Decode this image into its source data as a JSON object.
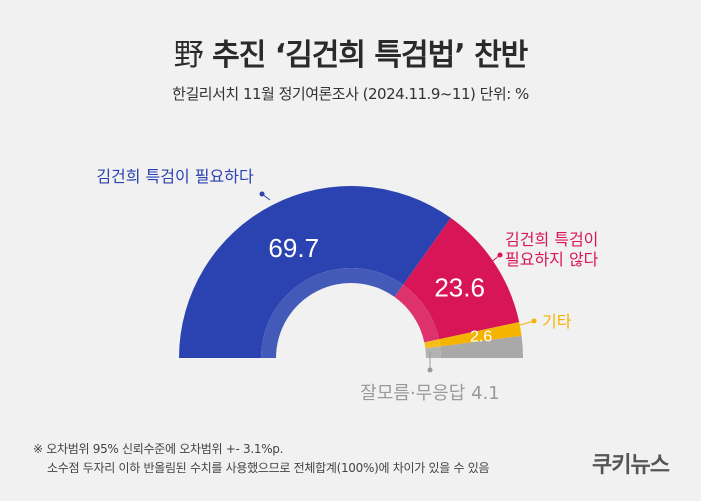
{
  "header": {
    "title_hanja": "野",
    "title_rest": " 추진 ‘김건희 특검법’ 찬반",
    "subtitle": "한길리서치 11월 정기여론조사 (2024.11.9~11) 단위: %"
  },
  "chart_data": {
    "type": "pie",
    "variant": "semi-donut",
    "slices": [
      {
        "label": "김건희 특검이 필요하다",
        "value": 69.7,
        "value_label": "69.7",
        "color": "#2a43b0",
        "label_color": "#2a43b0"
      },
      {
        "label": "김건희 특검이 필요하지 않다",
        "value": 23.6,
        "value_label": "23.6",
        "color": "#d81657",
        "label_color": "#d81657"
      },
      {
        "label": "기타",
        "value": 2.6,
        "value_label": "2.6",
        "color": "#f5b400",
        "label_color": "#f5b400"
      },
      {
        "label": "잘모름·무응답",
        "value": 4.1,
        "value_label": "4.1",
        "color": "#a9a9a9",
        "label_color": "#9a9a9a"
      }
    ],
    "label_lines": {
      "slice0": [
        "김건희 특검이 필요하다"
      ],
      "slice1": [
        "김건희 특검이",
        "필요하지 않다"
      ],
      "slice2": [
        "기타"
      ],
      "slice3": [
        "잘모름·무응답 4.1"
      ]
    }
  },
  "footnote": {
    "line1": "※ 오차범위 95% 신뢰수준에 오차범위 +- 3.1%p.",
    "line2": "소수점 두자리 이하 반올림된 수치를 사용했으므로 전체합계(100%)에 차이가 있을 수 있음"
  },
  "brand": {
    "logo_text": "쿠키뉴스"
  }
}
